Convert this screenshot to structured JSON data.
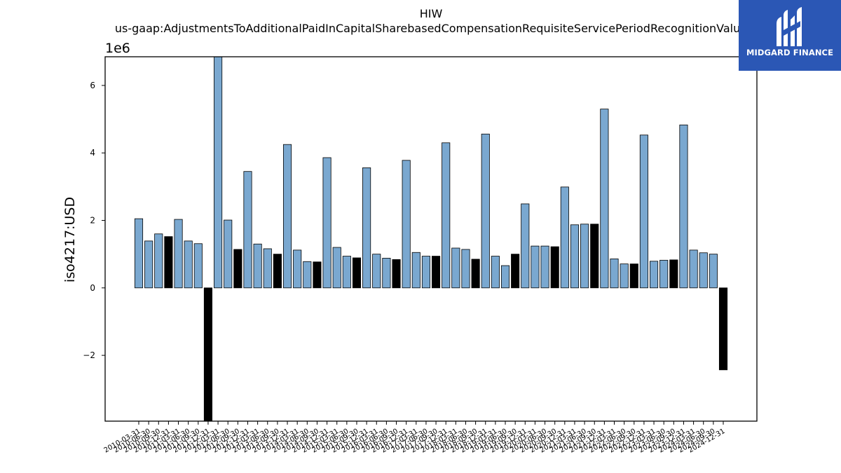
{
  "header": {
    "title": "HIW",
    "subtitle": "us-gaap:AdjustmentsToAdditionalPaidInCapitalSharebasedCompensationRequisiteServicePeriodRecognitionValue"
  },
  "logo": {
    "text": "MIDGARD FINANCE",
    "icon": "midgard-logo-icon",
    "background": "#2b57b5"
  },
  "chart_data": {
    "type": "bar",
    "title": "HIW",
    "subtitle": "us-gaap:AdjustmentsToAdditionalPaidInCapitalSharebasedCompensationRequisiteServicePeriodRecognitionValue",
    "ylabel": "iso4217:USD",
    "xlabel": "",
    "y_offset_label": "1e6",
    "ylim": [
      -3950000,
      6850000
    ],
    "yticks": [
      -2000000,
      0,
      2000000,
      4000000,
      6000000
    ],
    "ytick_labels": [
      "−2",
      "0",
      "2",
      "4",
      "6"
    ],
    "grid": false,
    "legend": "none",
    "colors": {
      "regular": "#7aa8d0",
      "highlight": "#000000",
      "edge": "#000000"
    },
    "categories": [
      "2010-03-31",
      "2010-06-30",
      "2010-09-30",
      "2010-12-31",
      "2011-03-31",
      "2011-06-30",
      "2011-09-30",
      "2011-12-31",
      "2012-03-31",
      "2012-06-30",
      "2012-09-30",
      "2012-12-31",
      "2013-03-31",
      "2013-06-30",
      "2013-09-30",
      "2013-12-31",
      "2014-03-31",
      "2014-06-30",
      "2014-09-30",
      "2014-12-31",
      "2015-03-31",
      "2015-06-30",
      "2015-09-30",
      "2015-12-31",
      "2016-03-31",
      "2016-06-30",
      "2016-09-30",
      "2016-12-31",
      "2017-03-31",
      "2017-06-30",
      "2017-09-30",
      "2017-12-31",
      "2018-03-31",
      "2018-06-30",
      "2018-09-30",
      "2018-12-31",
      "2019-03-31",
      "2019-06-30",
      "2019-09-30",
      "2019-12-31",
      "2020-03-31",
      "2020-06-30",
      "2020-09-30",
      "2020-12-31",
      "2021-03-31",
      "2021-06-30",
      "2021-09-30",
      "2021-12-31",
      "2022-03-31",
      "2022-06-30",
      "2022-09-30",
      "2022-12-31",
      "2023-03-31",
      "2023-06-30",
      "2023-09-30",
      "2023-12-31",
      "2024-03-31",
      "2024-06-30",
      "2024-09-30",
      "2024-12-31"
    ],
    "values": [
      2050000,
      1390000,
      1600000,
      1520000,
      2030000,
      1390000,
      1310000,
      -3950000,
      6850000,
      2010000,
      1140000,
      3450000,
      1300000,
      1160000,
      1000000,
      4250000,
      1120000,
      780000,
      770000,
      3860000,
      1200000,
      940000,
      890000,
      3560000,
      1000000,
      880000,
      840000,
      3780000,
      1050000,
      940000,
      940000,
      4300000,
      1180000,
      1140000,
      850000,
      4560000,
      940000,
      660000,
      1000000,
      2490000,
      1240000,
      1240000,
      1220000,
      2990000,
      1870000,
      1890000,
      1890000,
      5300000,
      860000,
      710000,
      710000,
      4530000,
      790000,
      820000,
      830000,
      4830000,
      1120000,
      1040000,
      1000000,
      -2430000
    ],
    "highlighted": [
      3,
      7,
      10,
      14,
      18,
      22,
      26,
      30,
      34,
      38,
      42,
      46,
      50,
      54,
      59
    ]
  }
}
